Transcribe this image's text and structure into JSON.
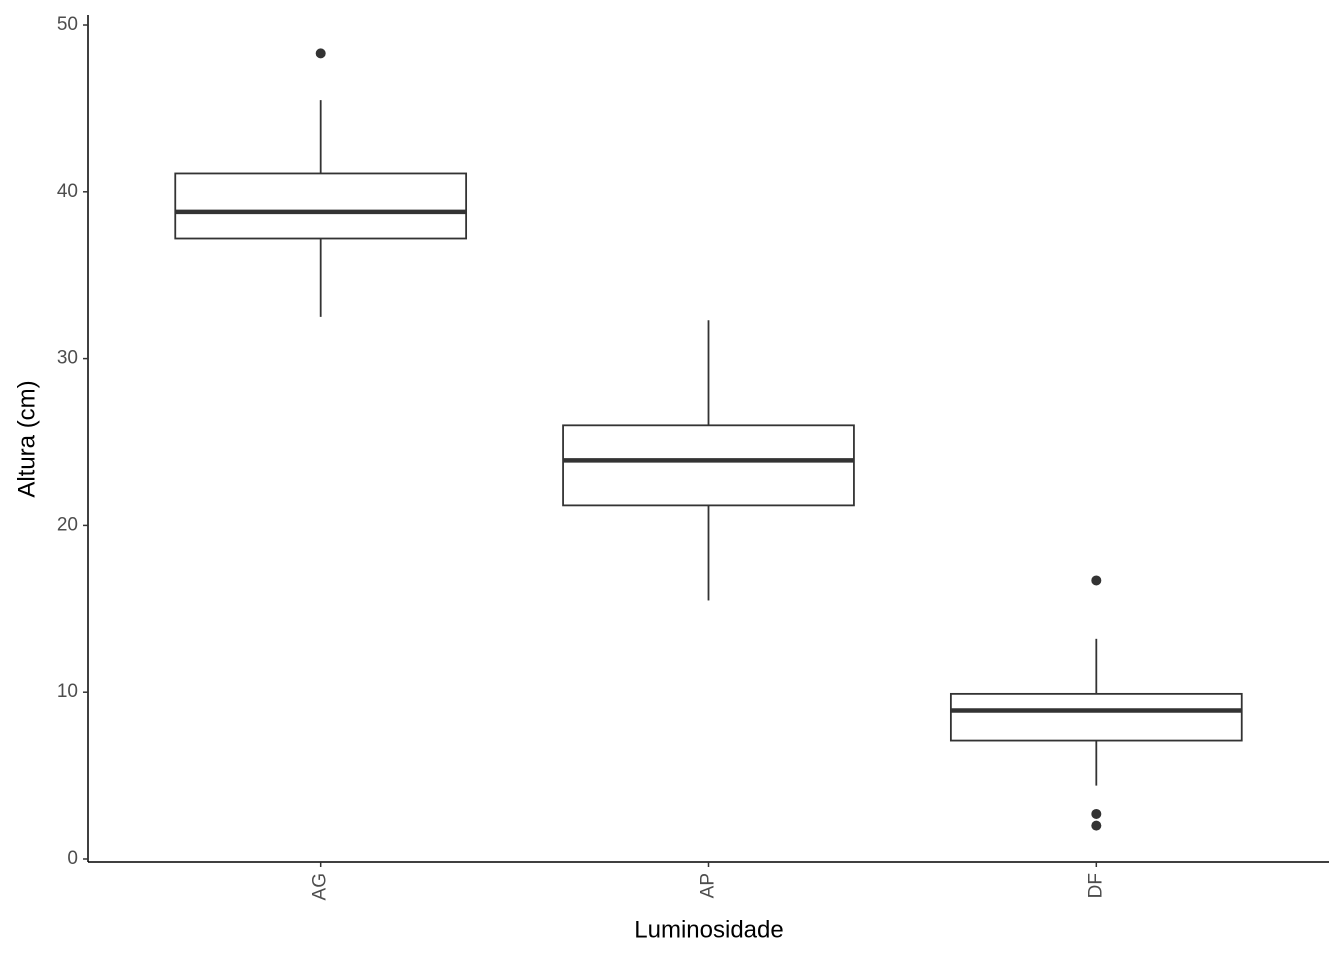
{
  "chart_data": {
    "type": "box",
    "x_label": "Luminosidade",
    "y_label": "Altura (cm)",
    "categories": [
      "AG",
      "AP",
      "DF"
    ],
    "whisker_low": [
      32.5,
      15.5,
      4.4
    ],
    "q1": [
      37.2,
      21.2,
      7.1
    ],
    "median": [
      38.8,
      23.9,
      8.9
    ],
    "q3": [
      41.1,
      26.0,
      9.9
    ],
    "whisker_high": [
      45.5,
      32.3,
      13.2
    ],
    "outliers": [
      [
        48.3
      ],
      [],
      [
        16.7,
        2.7,
        2.0
      ]
    ],
    "color": "#333333",
    "ylim": [
      -0.3,
      50.6
    ],
    "yticks": [
      0,
      10,
      20,
      30,
      40,
      50
    ]
  }
}
